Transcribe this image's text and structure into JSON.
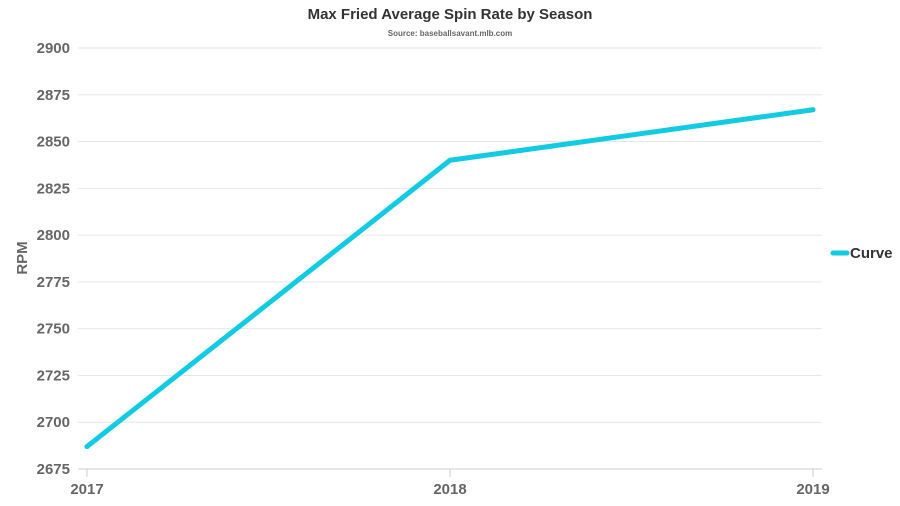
{
  "chart_data": {
    "type": "line",
    "title": "Max Fried Average Spin Rate by Season",
    "subtitle": "Source: baseballsavant.mlb.com",
    "xlabel": "",
    "ylabel": "RPM",
    "categories": [
      "2017",
      "2018",
      "2019"
    ],
    "series": [
      {
        "name": "Curve",
        "values": [
          2687,
          2840,
          2867
        ],
        "color": "#12cbe0"
      }
    ],
    "ylim": [
      2675,
      2900
    ],
    "yticks": [
      2675,
      2700,
      2725,
      2750,
      2775,
      2800,
      2825,
      2850,
      2875,
      2900
    ],
    "grid": true,
    "legend": "right"
  }
}
